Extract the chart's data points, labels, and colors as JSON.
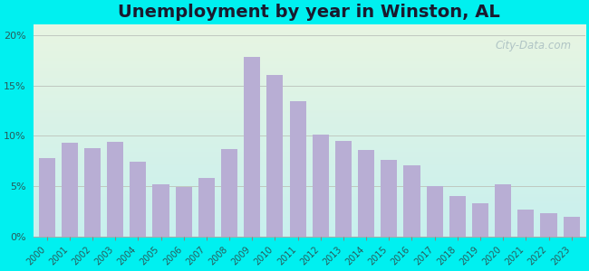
{
  "title": "Unemployment by year in Winston, AL",
  "years": [
    2000,
    2001,
    2002,
    2003,
    2004,
    2005,
    2006,
    2007,
    2008,
    2009,
    2010,
    2011,
    2012,
    2013,
    2014,
    2015,
    2016,
    2017,
    2018,
    2019,
    2020,
    2021,
    2022,
    2023
  ],
  "values": [
    7.8,
    9.3,
    8.8,
    9.4,
    7.4,
    5.2,
    4.9,
    5.8,
    8.7,
    17.8,
    16.0,
    13.4,
    10.1,
    9.5,
    8.6,
    7.6,
    7.1,
    5.0,
    4.0,
    3.3,
    5.2,
    2.7,
    2.3,
    2.0
  ],
  "bar_color": "#b8aed4",
  "background_outer": "#00f0f0",
  "background_inner_top": "#e8f5e2",
  "background_inner_bottom": "#c8f0ee",
  "ylim": [
    0,
    21
  ],
  "yticks": [
    0,
    5,
    10,
    15,
    20
  ],
  "title_fontsize": 14,
  "title_fontweight": "bold",
  "title_color": "#1a1a2e",
  "watermark_text": "City-Data.com",
  "grid_color": "#c0c8c0",
  "tick_label_color": "#2a5a5a"
}
